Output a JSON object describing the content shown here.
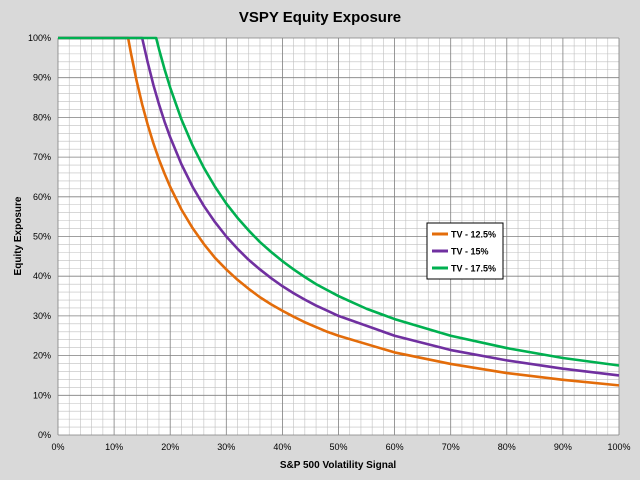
{
  "chart_data": {
    "type": "line",
    "title": "VSPY Equity Exposure",
    "xlabel": "S&P 500 Volatility Signal",
    "ylabel": "Equity Exposure",
    "xlim": [
      0,
      100
    ],
    "ylim": [
      0,
      100
    ],
    "x_ticks": [
      "0%",
      "10%",
      "20%",
      "30%",
      "40%",
      "50%",
      "60%",
      "70%",
      "80%",
      "90%",
      "100%"
    ],
    "y_ticks": [
      "0%",
      "10%",
      "20%",
      "30%",
      "40%",
      "50%",
      "60%",
      "70%",
      "80%",
      "90%",
      "100%"
    ],
    "grid": true,
    "legend_position": "right-middle",
    "series": [
      {
        "name": "TV - 12.5%",
        "color": "#e36c0a",
        "x": [
          0,
          12.5,
          13,
          14,
          15,
          16,
          17,
          18,
          19,
          20,
          22,
          24,
          26,
          28,
          30,
          32,
          34,
          36,
          38,
          40,
          42,
          44,
          46,
          48,
          50,
          60,
          70,
          80,
          90,
          100
        ],
        "y": [
          100,
          100,
          96.2,
          89.3,
          83.3,
          78.1,
          73.5,
          69.4,
          65.8,
          62.5,
          56.8,
          52.1,
          48.1,
          44.6,
          41.7,
          39.1,
          36.8,
          34.7,
          32.9,
          31.3,
          29.8,
          28.4,
          27.2,
          26.0,
          25.0,
          20.8,
          17.9,
          15.6,
          13.9,
          12.5
        ]
      },
      {
        "name": "TV - 15%",
        "color": "#7030a0",
        "x": [
          0,
          15,
          16,
          17,
          18,
          19,
          20,
          22,
          24,
          26,
          28,
          30,
          32,
          34,
          36,
          38,
          40,
          42,
          44,
          46,
          48,
          50,
          60,
          70,
          80,
          90,
          100
        ],
        "y": [
          100,
          100,
          93.8,
          88.2,
          83.3,
          78.9,
          75.0,
          68.2,
          62.5,
          57.7,
          53.6,
          50.0,
          46.9,
          44.1,
          41.7,
          39.5,
          37.5,
          35.7,
          34.1,
          32.6,
          31.3,
          30.0,
          25.0,
          21.4,
          18.8,
          16.7,
          15.0
        ]
      },
      {
        "name": "TV - 17.5%",
        "color": "#00b050",
        "x": [
          0,
          17.5,
          18,
          19,
          20,
          22,
          24,
          26,
          28,
          30,
          32,
          34,
          36,
          38,
          40,
          42,
          44,
          46,
          48,
          50,
          52,
          55,
          60,
          70,
          80,
          90,
          100
        ],
        "y": [
          100,
          100,
          97.2,
          92.1,
          87.5,
          79.5,
          72.9,
          67.3,
          62.5,
          58.3,
          54.7,
          51.5,
          48.6,
          46.1,
          43.8,
          41.7,
          39.8,
          38.0,
          36.5,
          35.0,
          33.7,
          31.8,
          29.2,
          25.0,
          21.9,
          19.4,
          17.5
        ]
      }
    ]
  }
}
